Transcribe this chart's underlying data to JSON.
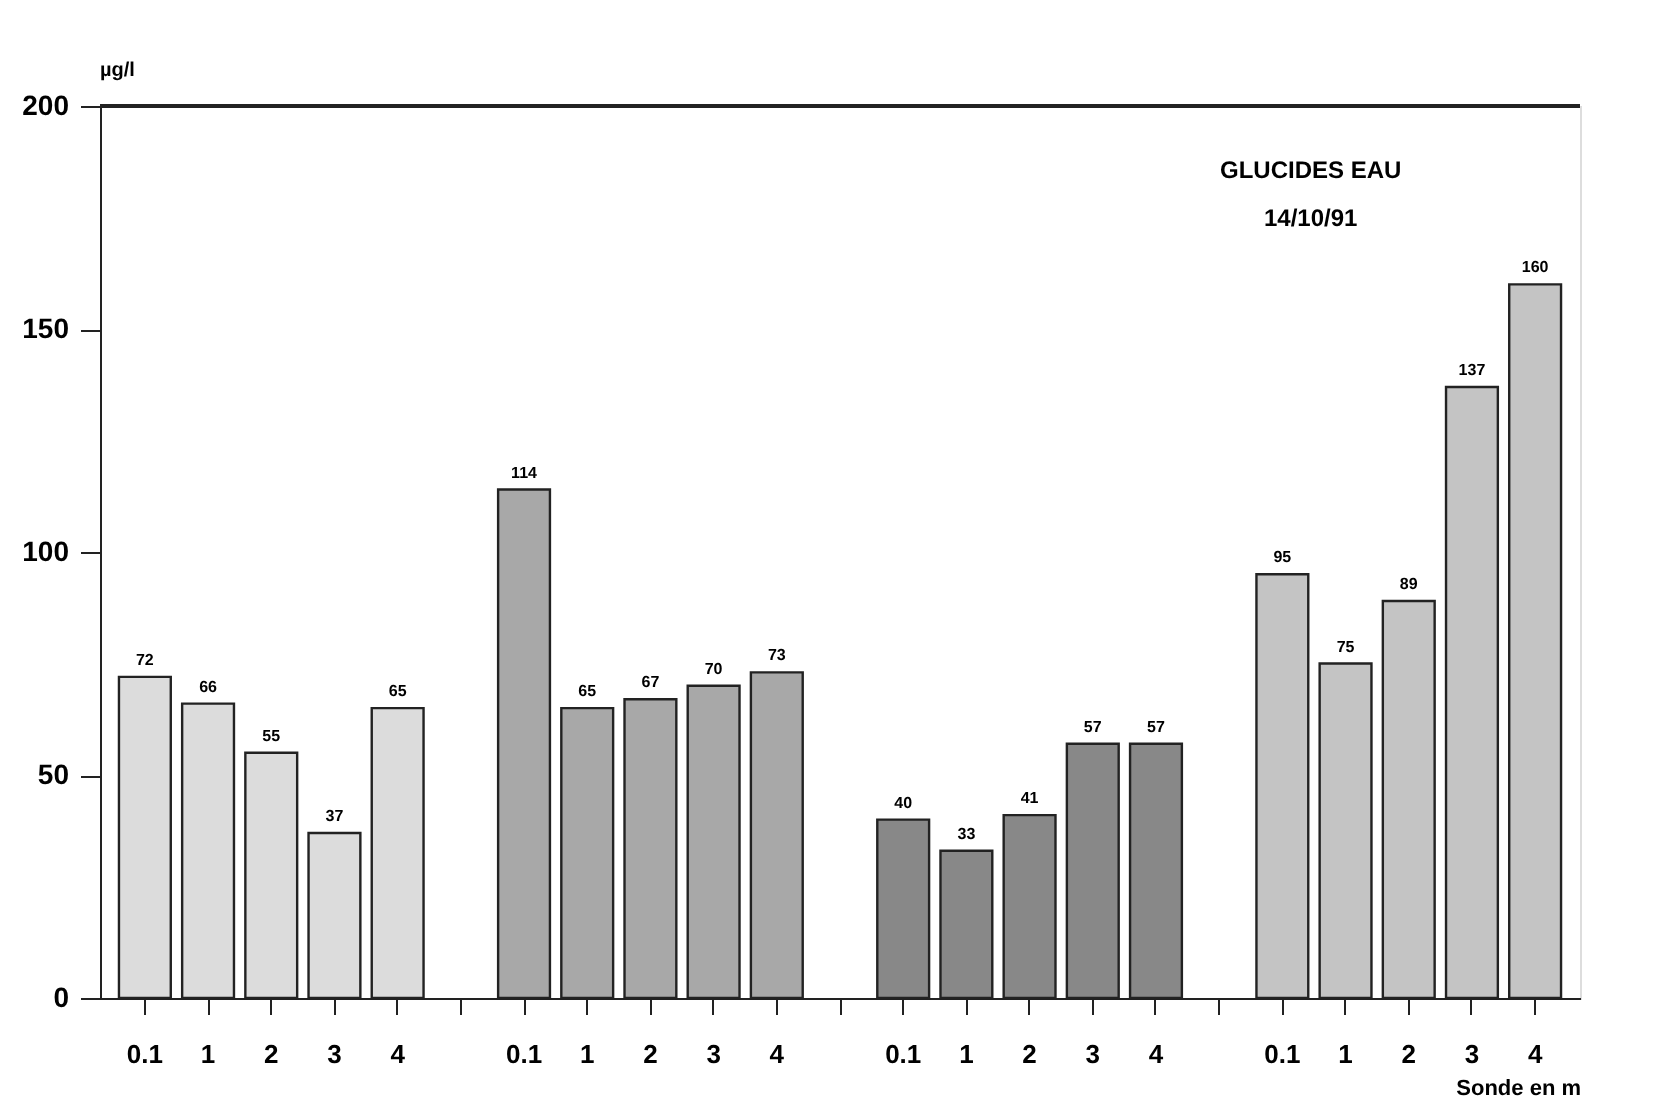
{
  "chart_data": {
    "type": "bar",
    "title": "GLUCIDES EAU",
    "subtitle": "14/10/91",
    "ylabel": "µg/l",
    "xlabel": "Sonde en m",
    "categories": [
      "0.1",
      "1",
      "2",
      "3",
      "4",
      null,
      "0.1",
      "1",
      "2",
      "3",
      "4",
      null,
      "0.1",
      "1",
      "2",
      "3",
      "4",
      null,
      "0.1",
      "1",
      "2",
      "3",
      "4"
    ],
    "values": [
      72,
      66,
      55,
      37,
      65,
      null,
      114,
      65,
      67,
      70,
      73,
      null,
      40,
      33,
      41,
      57,
      57,
      null,
      95,
      75,
      89,
      137,
      160
    ],
    "colors": [
      "#dcdcdc",
      "#dcdcdc",
      "#dcdcdc",
      "#dcdcdc",
      "#dcdcdc",
      "#ffffff",
      "#a8a8a8",
      "#a8a8a8",
      "#a8a8a8",
      "#a8a8a8",
      "#a8a8a8",
      "#ffffff",
      "#888888",
      "#888888",
      "#888888",
      "#888888",
      "#888888",
      "#ffffff",
      "#c4c4c4",
      "#c4c4c4",
      "#c4c4c4",
      "#c4c4c4",
      "#c4c4c4"
    ],
    "ylim": [
      0,
      200
    ],
    "yticks": [
      0,
      50,
      100,
      150,
      200
    ],
    "data_labels": true
  }
}
